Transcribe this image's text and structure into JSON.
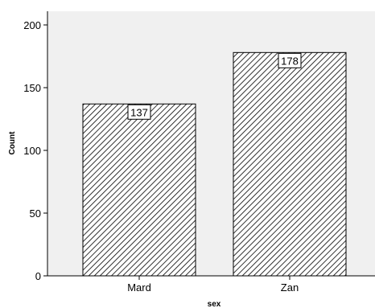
{
  "chart_data": {
    "type": "bar",
    "categories": [
      "Mard",
      "Zan"
    ],
    "values": [
      137,
      178
    ],
    "data_labels": [
      "137",
      "178"
    ],
    "xlabel": "sex",
    "ylabel": "Count",
    "ylim": [
      0,
      200
    ],
    "yticks": [
      "0",
      "50",
      "100",
      "150",
      "200"
    ],
    "grid": false,
    "legend": "none",
    "colors": {
      "plot_background": "#f0f0f0",
      "bar_fill": "#ffffff",
      "hatch": "#000000",
      "axis": "#000000"
    }
  }
}
